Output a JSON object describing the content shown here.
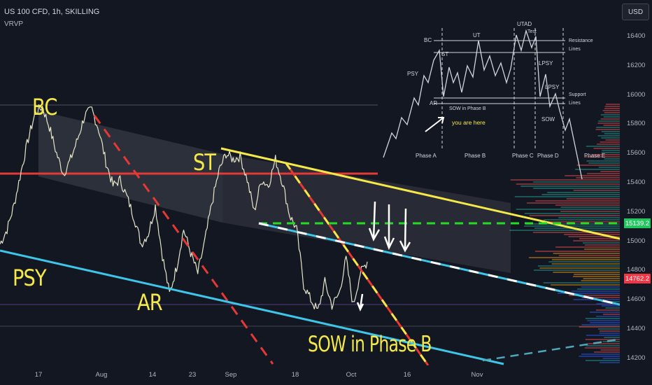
{
  "header": {
    "symbol": "US 100 CFD, 1h, SKILLING",
    "indicator": "VRVP",
    "currency_button": "USD"
  },
  "annotations": {
    "bc": "BC",
    "st": "ST",
    "psy": "PSY",
    "ar": "AR",
    "sow": "SOW in Phase B"
  },
  "schematic": {
    "labels": [
      "BC",
      "ST",
      "UT",
      "UTAD",
      "Test",
      "PSY",
      "LPSY",
      "LPSY",
      "AR",
      "SOW",
      "SOW in Phase B"
    ],
    "resistance": "Resistance",
    "resistance_2": "Lines",
    "support": "Support",
    "support_2": "Lines",
    "you_are_here": "you are here",
    "phases": [
      "Phase A",
      "Phase B",
      "Phase C",
      "Phase D",
      "Phase E"
    ]
  },
  "chart_data": {
    "type": "line",
    "title": "US 100 CFD, 1h, SKILLING",
    "x_ticks": [
      "17",
      "Aug",
      "14",
      "23",
      "Sep",
      "18",
      "Oct",
      "16",
      "Nov"
    ],
    "y_ticks": [
      14200,
      14400,
      14600,
      14800,
      15000,
      15200,
      15400,
      15600,
      15800,
      16000,
      16200,
      16400
    ],
    "ylim": [
      14150,
      16650
    ],
    "price_labels": [
      {
        "value": "15139.2",
        "color": "#22c55e"
      },
      {
        "value": "14762.2",
        "color": "#f23645"
      }
    ],
    "series": [
      {
        "values": [
          14980,
          15080,
          15250,
          15480,
          15700,
          15880,
          15920,
          15780,
          15600,
          15460,
          15560,
          15700,
          15860,
          15900,
          15760,
          15540,
          15380,
          15420,
          15300,
          15160,
          14980,
          15050,
          15240,
          14900,
          14640,
          14820,
          15080,
          14920,
          14780,
          15000,
          15260,
          15480,
          15600,
          15560,
          15580,
          15420,
          15200,
          15420,
          15380,
          15560,
          15400,
          15180,
          15080,
          14700,
          14600,
          14520,
          14720,
          14560,
          14640,
          14880,
          14560,
          14780,
          14860
        ]
      }
    ],
    "horizontal_levels": [
      15478,
      15139,
      14762
    ],
    "grid": false
  }
}
